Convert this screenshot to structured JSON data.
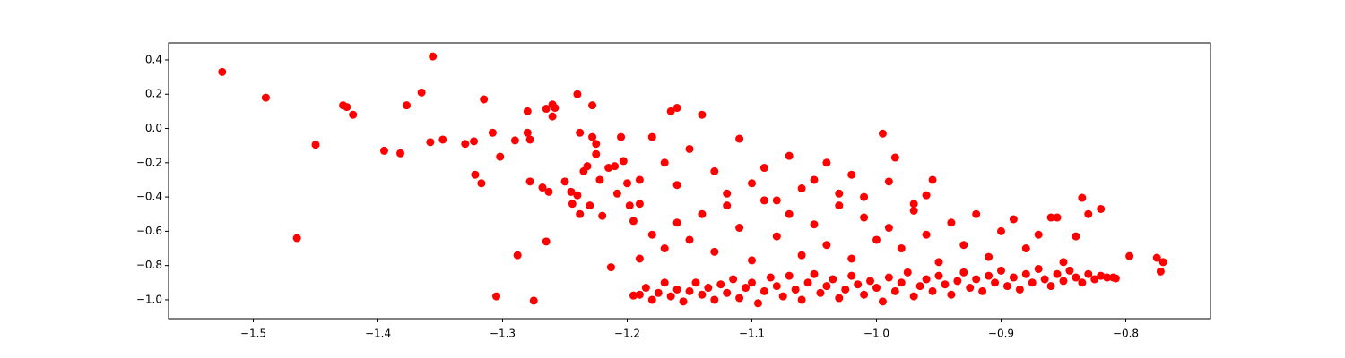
{
  "chart_data": {
    "type": "scatter",
    "color": "#ff0000",
    "xlim": [
      -1.568,
      -0.732
    ],
    "ylim": [
      -1.11,
      0.499
    ],
    "xticks": [
      {
        "value": -1.5,
        "label": "−1.5"
      },
      {
        "value": -1.4,
        "label": "−1.4"
      },
      {
        "value": -1.3,
        "label": "−1.3"
      },
      {
        "value": -1.2,
        "label": "−1.2"
      },
      {
        "value": -1.1,
        "label": "−1.1"
      },
      {
        "value": -1.0,
        "label": "−1.0"
      },
      {
        "value": -0.9,
        "label": "−0.9"
      },
      {
        "value": -0.8,
        "label": "−0.8"
      }
    ],
    "yticks": [
      {
        "value": -1.0,
        "label": "−1.0"
      },
      {
        "value": -0.8,
        "label": "−0.8"
      },
      {
        "value": -0.6,
        "label": "−0.6"
      },
      {
        "value": -0.4,
        "label": "−0.4"
      },
      {
        "value": -0.2,
        "label": "−0.2"
      },
      {
        "value": 0,
        "label": "0.0"
      },
      0.2,
      0.4
    ],
    "x": [
      -1.525,
      -1.49,
      -1.465,
      -1.45,
      -1.428,
      -1.425,
      -1.42,
      -1.395,
      -1.382,
      -1.377,
      -1.365,
      -1.358,
      -1.356,
      -1.348,
      -1.33,
      -1.323,
      -1.322,
      -1.317,
      -1.315,
      -1.308,
      -1.305,
      -1.302,
      -1.29,
      -1.288,
      -1.28,
      -1.28,
      -1.278,
      -1.278,
      -1.275,
      -1.268,
      -1.265,
      -1.265,
      -1.263,
      -1.26,
      -1.26,
      -1.258,
      -1.25,
      -1.245,
      -1.244,
      -1.24,
      -1.24,
      -1.238,
      -1.238,
      -1.235,
      -1.232,
      -1.23,
      -1.228,
      -1.228,
      -1.225,
      -1.225,
      -1.222,
      -1.22,
      -1.215,
      -1.213,
      -1.21,
      -1.208,
      -1.205,
      -1.203,
      -1.2,
      -1.198,
      -1.195,
      -1.19,
      -1.195,
      -1.19,
      -1.185,
      -1.18,
      -1.175,
      -1.17,
      -1.165,
      -1.16,
      -1.155,
      -1.15,
      -1.145,
      -1.14,
      -1.135,
      -1.13,
      -1.125,
      -1.12,
      -1.115,
      -1.11,
      -1.105,
      -1.1,
      -1.095,
      -1.09,
      -1.085,
      -1.08,
      -1.075,
      -1.07,
      -1.065,
      -1.06,
      -1.055,
      -1.05,
      -1.045,
      -1.04,
      -1.035,
      -1.03,
      -1.025,
      -1.02,
      -1.015,
      -1.01,
      -1.005,
      -1.0,
      -0.995,
      -0.99,
      -0.985,
      -0.98,
      -0.975,
      -0.97,
      -0.965,
      -0.96,
      -0.955,
      -0.95,
      -0.945,
      -0.94,
      -0.935,
      -0.93,
      -0.925,
      -0.92,
      -0.915,
      -0.91,
      -0.905,
      -0.9,
      -0.895,
      -0.89,
      -0.885,
      -0.88,
      -0.875,
      -0.87,
      -0.865,
      -0.86,
      -0.855,
      -0.85,
      -0.845,
      -0.84,
      -0.835,
      -0.83,
      -0.825,
      -0.82,
      -0.815,
      -0.81,
      -1.19,
      -1.18,
      -1.17,
      -1.16,
      -1.15,
      -1.14,
      -1.13,
      -1.12,
      -1.11,
      -1.1,
      -1.09,
      -1.08,
      -1.07,
      -1.06,
      -1.05,
      -1.04,
      -1.03,
      -1.02,
      -1.01,
      -1.0,
      -0.99,
      -0.98,
      -0.97,
      -0.96,
      -0.95,
      -0.94,
      -0.93,
      -0.92,
      -0.91,
      -0.9,
      -0.89,
      -0.88,
      -0.87,
      -0.86,
      -0.85,
      -0.84,
      -0.83,
      -0.82,
      -0.835,
      -0.855,
      -1.19,
      -1.18,
      -1.17,
      -1.16,
      -1.15,
      -1.14,
      -1.13,
      -1.12,
      -1.11,
      -1.1,
      -1.09,
      -1.08,
      -1.07,
      -1.06,
      -1.05,
      -1.04,
      -1.03,
      -1.02,
      -1.01,
      -0.995,
      -0.99,
      -0.985,
      -0.97,
      -0.955,
      -0.96,
      -1.165,
      -1.16,
      -0.797,
      -0.775,
      -0.772,
      -0.77,
      -0.808
    ],
    "values": [
      0.33,
      0.18,
      -0.64,
      -0.095,
      0.135,
      0.125,
      0.08,
      -0.13,
      -0.145,
      0.135,
      0.21,
      -0.08,
      0.42,
      -0.065,
      -0.09,
      -0.075,
      -0.27,
      -0.32,
      0.17,
      -0.025,
      -0.98,
      -0.165,
      -0.07,
      -0.74,
      0.1,
      -0.025,
      -0.065,
      -0.31,
      -1.005,
      -0.345,
      0.115,
      -0.66,
      -0.37,
      0.14,
      0.07,
      0.12,
      -0.31,
      -0.37,
      -0.44,
      0.2,
      -0.39,
      -0.5,
      -0.025,
      -0.25,
      -0.22,
      -0.45,
      0.135,
      -0.05,
      -0.09,
      -0.15,
      -0.3,
      -0.51,
      -0.23,
      -0.81,
      -0.22,
      -0.38,
      -0.05,
      -0.19,
      -0.32,
      -0.45,
      -0.54,
      -0.44,
      -0.975,
      -0.97,
      -0.93,
      -1.0,
      -0.96,
      -0.9,
      -0.98,
      -0.94,
      -1.01,
      -0.95,
      -0.9,
      -0.97,
      -0.93,
      -1.0,
      -0.91,
      -0.96,
      -0.88,
      -0.99,
      -0.93,
      -0.9,
      -1.02,
      -0.95,
      -0.87,
      -0.92,
      -0.98,
      -0.86,
      -0.94,
      -1.0,
      -0.9,
      -0.85,
      -0.96,
      -0.92,
      -0.88,
      -0.99,
      -0.94,
      -0.86,
      -0.91,
      -0.97,
      -0.89,
      -0.93,
      -1.01,
      -0.87,
      -0.95,
      -0.9,
      -0.84,
      -0.98,
      -0.92,
      -0.88,
      -0.95,
      -0.86,
      -0.91,
      -0.97,
      -0.89,
      -0.84,
      -0.93,
      -0.88,
      -0.95,
      -0.86,
      -0.9,
      -0.83,
      -0.92,
      -0.87,
      -0.94,
      -0.85,
      -0.9,
      -0.82,
      -0.88,
      -0.92,
      -0.85,
      -0.89,
      -0.83,
      -0.87,
      -0.9,
      -0.85,
      -0.88,
      -0.86,
      -0.87,
      -0.87,
      -0.76,
      -0.62,
      -0.7,
      -0.55,
      -0.65,
      -0.5,
      -0.72,
      -0.45,
      -0.58,
      -0.77,
      -0.42,
      -0.63,
      -0.5,
      -0.74,
      -0.56,
      -0.68,
      -0.45,
      -0.76,
      -0.52,
      -0.65,
      -0.58,
      -0.7,
      -0.48,
      -0.62,
      -0.78,
      -0.55,
      -0.68,
      -0.5,
      -0.75,
      -0.6,
      -0.53,
      -0.7,
      -0.62,
      -0.52,
      -0.78,
      -0.63,
      -0.5,
      -0.47,
      -0.405,
      -0.52,
      -0.3,
      -0.05,
      -0.2,
      -0.33,
      -0.12,
      0.08,
      -0.25,
      -0.38,
      -0.06,
      -0.32,
      -0.23,
      -0.42,
      -0.16,
      -0.35,
      -0.3,
      -0.2,
      -0.38,
      -0.27,
      -0.4,
      -0.03,
      -0.31,
      -0.17,
      -0.44,
      -0.3,
      -0.39,
      0.1,
      0.12,
      -0.745,
      -0.755,
      -0.835,
      -0.78,
      -0.875
    ]
  }
}
